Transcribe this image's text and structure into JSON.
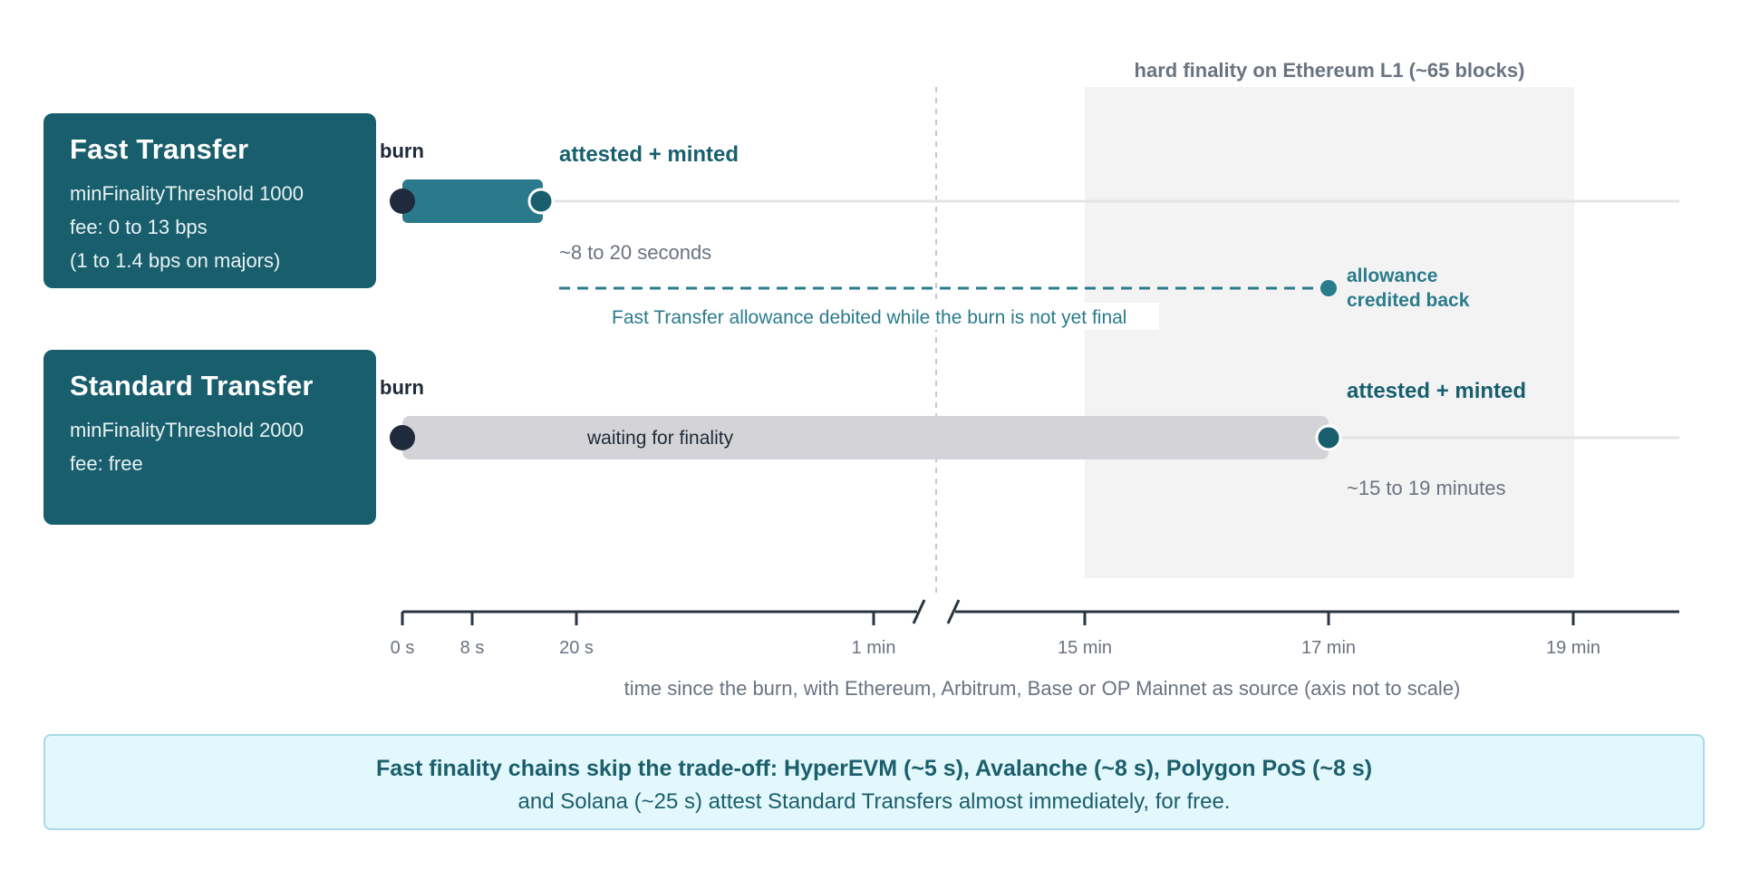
{
  "fast": {
    "title": "Fast Transfer",
    "lines": [
      "minFinalityThreshold 1000",
      "fee: 0 to 13 bps",
      "(1 to 1.4 bps on majors)"
    ],
    "burn_label": "burn",
    "minted_label": "attested + minted",
    "duration_label": "~8 to 20 seconds",
    "allowance_note": "Fast Transfer allowance debited while the burn is not yet final",
    "allowance_end_label": [
      "allowance",
      "credited back"
    ]
  },
  "standard": {
    "title": "Standard Transfer",
    "lines": [
      "minFinalityThreshold 2000",
      "fee: free"
    ],
    "burn_label": "burn",
    "bar_label": "waiting for finality",
    "minted_label": "attested + minted",
    "duration_label": "~15 to 19 minutes"
  },
  "finality_zone_label": "hard finality on Ethereum L1 (~65 blocks)",
  "axis": {
    "ticks": [
      "0 s",
      "8 s",
      "20 s",
      "1 min",
      "15 min",
      "17 min",
      "19 min"
    ],
    "caption": "time since the burn, with Ethereum, Arbitrum, Base or OP Mainnet as source (axis not to scale)"
  },
  "callout": {
    "line1": "Fast finality chains skip the trade-off: HyperEVM (~5 s), Avalanche (~8 s), Polygon PoS (~8 s)",
    "line2": "and Solana (~25 s) attest Standard Transfers almost immediately, for free."
  },
  "colors": {
    "card": "#185e6c",
    "fast_bar": "#2a7a8c",
    "wait_bar": "#d4d4d8",
    "dark_dot": "#1f2a3c",
    "teal_text": "#175f6e",
    "accent_teal": "#2a7b8c",
    "muted_text": "#6b7280",
    "zone": "#f3f3f4"
  }
}
